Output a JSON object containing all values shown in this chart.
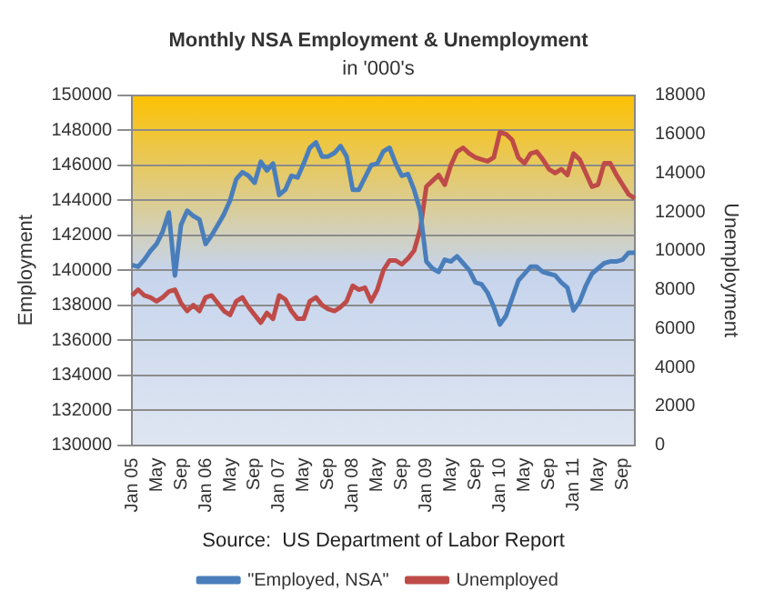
{
  "chart_data": {
    "type": "line",
    "title": "Monthly NSA Employment & Unemployment",
    "subtitle": "in '000's",
    "ylabel": "Employment",
    "y2label": "Unemployment",
    "categories": [
      "Jan 05",
      null,
      null,
      null,
      "May",
      null,
      null,
      null,
      "Sep",
      null,
      null,
      null,
      "Jan 06",
      null,
      null,
      null,
      "May",
      null,
      null,
      null,
      "Sep",
      null,
      null,
      null,
      "Jan 07",
      null,
      null,
      null,
      "May",
      null,
      null,
      null,
      "Sep",
      null,
      null,
      null,
      "Jan 08",
      null,
      null,
      null,
      "May",
      null,
      null,
      null,
      "Sep",
      null,
      null,
      null,
      "Jan 09",
      null,
      null,
      null,
      "May",
      null,
      null,
      null,
      "Sep",
      null,
      null,
      null,
      "Jan 10",
      null,
      null,
      null,
      "May",
      null,
      null,
      null,
      "Sep",
      null,
      null,
      null,
      "Jan 11",
      null,
      null,
      null,
      "May",
      null,
      null,
      null,
      "Sep",
      null,
      null
    ],
    "series": [
      {
        "name": "\"Employed, NSA\"",
        "color": "#4a7ebb",
        "values": [
          140300,
          140200,
          140600,
          141100,
          141500,
          142200,
          143300,
          139700,
          142600,
          143400,
          143100,
          142900,
          141500,
          142000,
          142600,
          143200,
          144000,
          145200,
          145600,
          145400,
          145000,
          146200,
          145700,
          146100,
          144300,
          144600,
          145400,
          145300,
          146100,
          147000,
          147300,
          146500,
          146500,
          146700,
          147100,
          146500,
          144600,
          144600,
          145300,
          146000,
          146100,
          146800,
          147000,
          146100,
          145400,
          145500,
          144600,
          143400,
          140500,
          140100,
          139900,
          140600,
          140500,
          140800,
          140400,
          140000,
          139300,
          139200,
          138700,
          137900,
          136900,
          137400,
          138400,
          139400,
          139800,
          140200,
          140200,
          139900,
          139800,
          139700,
          139300,
          139000,
          137700,
          138200,
          139100,
          139800,
          140100,
          140400,
          140500,
          140500,
          140600,
          141000,
          141000
        ]
      },
      {
        "name": "Unemployed",
        "color": "#be4b48",
        "axis": "y2",
        "values": [
          7700,
          8000,
          7700,
          7600,
          7400,
          7600,
          7900,
          8000,
          7300,
          6900,
          7200,
          6900,
          7600,
          7700,
          7300,
          6900,
          6700,
          7400,
          7600,
          7100,
          6700,
          6300,
          6800,
          6500,
          7700,
          7500,
          6900,
          6500,
          6500,
          7400,
          7600,
          7200,
          7000,
          6900,
          7100,
          7400,
          8200,
          8000,
          8100,
          7400,
          8000,
          9000,
          9500,
          9500,
          9300,
          9600,
          10000,
          11100,
          13300,
          13600,
          13900,
          13400,
          14400,
          15100,
          15300,
          15000,
          14800,
          14700,
          14600,
          14800,
          16100,
          16000,
          15700,
          14800,
          14500,
          15000,
          15100,
          14700,
          14200,
          14000,
          14200,
          13900,
          15000,
          14700,
          14000,
          13300,
          13400,
          14500,
          14500,
          13900,
          13400,
          12900,
          12700
        ]
      }
    ],
    "ylim": [
      130000,
      150000
    ],
    "yticks": [
      130000,
      132000,
      134000,
      136000,
      138000,
      140000,
      142000,
      144000,
      146000,
      148000,
      150000
    ],
    "y2lim": [
      0,
      18000
    ],
    "y2ticks": [
      0,
      2000,
      4000,
      6000,
      8000,
      10000,
      12000,
      14000,
      16000,
      18000
    ],
    "grid": "y",
    "legend": "bottom",
    "marker": "none",
    "line_style": "solid",
    "annotations": [
      "Source:  US Department of Labor Report"
    ]
  }
}
